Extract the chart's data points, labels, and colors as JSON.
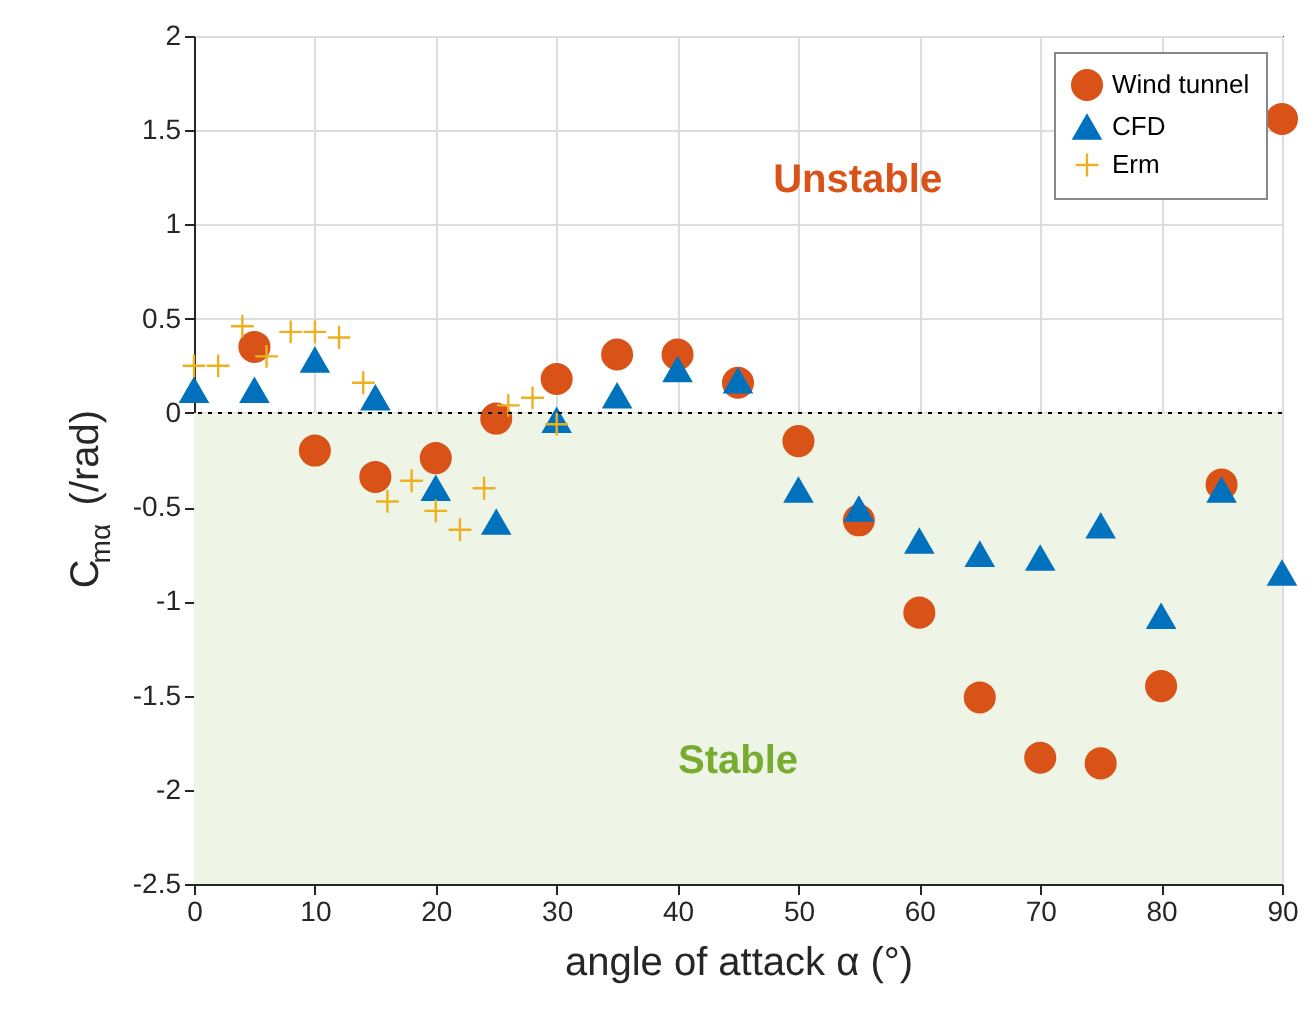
{
  "chart_data": {
    "type": "scatter",
    "xlabel": "angle of attack α (°)",
    "ylabel": "C$_{mα}$ (/rad)",
    "xlim": [
      0,
      90
    ],
    "xticks": [
      0,
      10,
      20,
      30,
      40,
      50,
      60,
      70,
      80,
      90
    ],
    "ylim": [
      -2.5,
      2
    ],
    "yticks": [
      -2.5,
      -2,
      -1.5,
      -1,
      -0.5,
      0,
      0.5,
      1,
      1.5,
      2
    ],
    "grid": true,
    "legend": "top right",
    "annotations": [
      "Unstable",
      "Stable"
    ],
    "bands": [
      {
        "axis": "y",
        "from": -2.5,
        "to": 0,
        "color": "#eef4e6"
      }
    ],
    "ref_lines": [
      {
        "axis": "y",
        "value": 0,
        "color": "#000000",
        "line_style": "dotted"
      }
    ],
    "series": [
      {
        "name": "Wind tunnel",
        "color": "#d95319",
        "marker": "circle",
        "x": [
          5,
          10,
          15,
          20,
          25,
          30,
          35,
          40,
          45,
          50,
          55,
          60,
          65,
          70,
          75,
          80,
          85,
          90
        ],
        "values": [
          0.35,
          -0.2,
          -0.34,
          -0.24,
          -0.03,
          0.18,
          0.31,
          0.31,
          0.16,
          -0.15,
          -0.57,
          -1.06,
          -1.51,
          -1.83,
          -1.86,
          -1.45,
          -0.38,
          1.56
        ]
      },
      {
        "name": "CFD",
        "color": "#0072bd",
        "marker": "triangle",
        "x": [
          0,
          5,
          10,
          15,
          20,
          25,
          30,
          35,
          40,
          45,
          50,
          55,
          60,
          65,
          70,
          75,
          80,
          85,
          90
        ],
        "values": [
          0.12,
          0.12,
          0.28,
          0.08,
          -0.4,
          -0.58,
          -0.04,
          0.09,
          0.23,
          0.17,
          -0.41,
          -0.51,
          -0.68,
          -0.75,
          -0.77,
          -0.6,
          -1.08,
          -0.41,
          -0.85
        ]
      },
      {
        "name": "Erm",
        "color": "#edb120",
        "marker": "cross",
        "x": [
          0,
          2,
          4,
          6,
          8,
          10,
          12,
          14,
          16,
          18,
          20,
          22,
          24,
          26,
          28,
          30
        ],
        "values": [
          0.25,
          0.25,
          0.46,
          0.3,
          0.43,
          0.43,
          0.4,
          0.16,
          -0.47,
          -0.36,
          -0.52,
          -0.62,
          -0.4,
          0.04,
          0.08,
          -0.06
        ]
      }
    ]
  }
}
